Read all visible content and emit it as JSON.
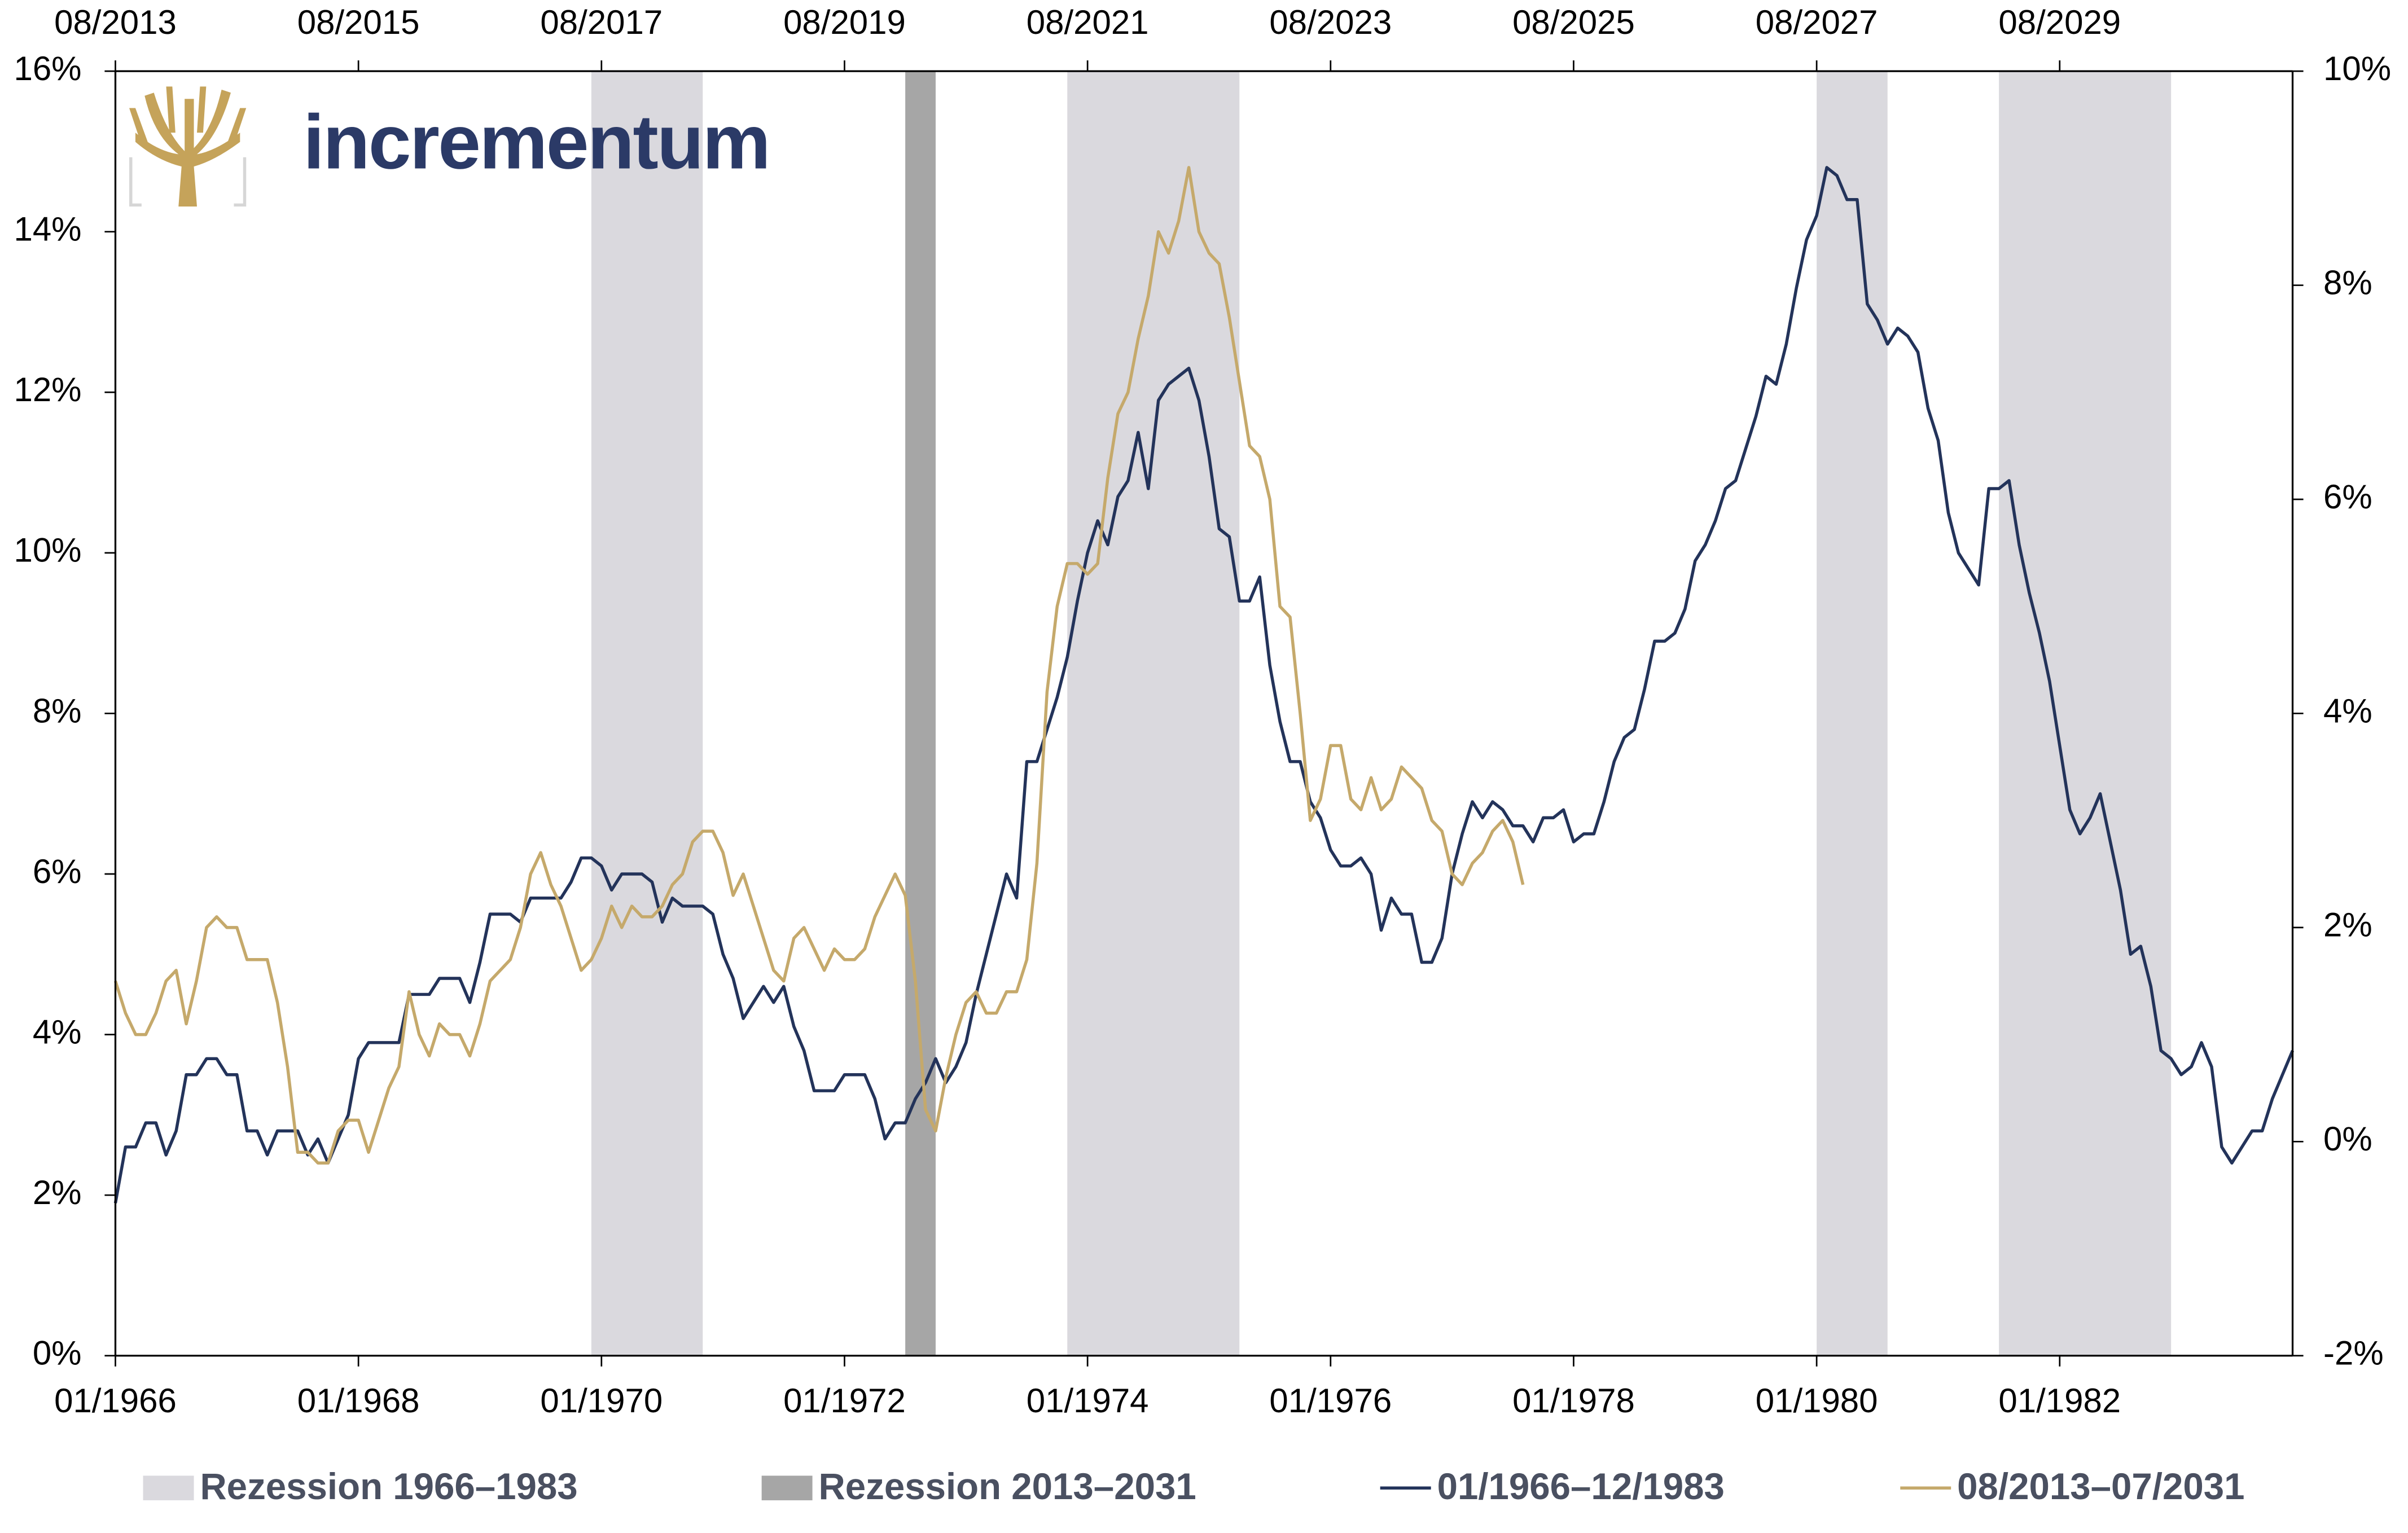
{
  "chart_data": {
    "type": "line",
    "logo_text": "incrementum",
    "xlim": [
      "01/1966",
      "12/1983"
    ],
    "xticks": [
      "01/1966",
      "01/1968",
      "01/1970",
      "01/1972",
      "01/1974",
      "01/1976",
      "01/1978",
      "01/1980",
      "01/1982"
    ],
    "x2lim": [
      "08/2013",
      "07/2031"
    ],
    "x2ticks": [
      "08/2013",
      "08/2015",
      "08/2017",
      "08/2019",
      "08/2021",
      "08/2023",
      "08/2025",
      "08/2027",
      "08/2029"
    ],
    "ylim": [
      0,
      16
    ],
    "yticks": [
      {
        "value": 0,
        "label": "0%"
      },
      {
        "value": 2,
        "label": "2%"
      },
      {
        "value": 4,
        "label": "4%"
      },
      {
        "value": 6,
        "label": "6%"
      },
      {
        "value": 8,
        "label": "8%"
      },
      {
        "value": 10,
        "label": "10%"
      },
      {
        "value": 12,
        "label": "12%"
      },
      {
        "value": 14,
        "label": "14%"
      },
      {
        "value": 16,
        "label": "16%"
      }
    ],
    "y2lim": [
      -2,
      10
    ],
    "y2ticks": [
      {
        "value": -2,
        "label": "-2%"
      },
      {
        "value": 0,
        "label": "0%"
      },
      {
        "value": 2,
        "label": "2%"
      },
      {
        "value": 4,
        "label": "4%"
      },
      {
        "value": 6,
        "label": "6%"
      },
      {
        "value": 8,
        "label": "8%"
      },
      {
        "value": 10,
        "label": "10%"
      }
    ],
    "grid": false,
    "recessions": [
      {
        "name": "Rezession 1966–1983",
        "color": "#dad9de",
        "axis": "x",
        "periods": [
          [
            "12/1969",
            "11/1970"
          ],
          [
            "11/1973",
            "04/1975"
          ],
          [
            "01/1980",
            "08/1980"
          ],
          [
            "07/1981",
            "12/1982"
          ]
        ]
      },
      {
        "name": "Rezession 2013–2031",
        "color": "#a6a6a6",
        "axis": "x2",
        "periods": [
          [
            "02/2020",
            "05/2020"
          ]
        ]
      }
    ],
    "series": [
      {
        "name": "01/1966–12/1983",
        "color": "#23335a",
        "x_axis": "x",
        "x": [
          "01/1966",
          "02/1966",
          "03/1966",
          "04/1966",
          "05/1966",
          "06/1966",
          "07/1966",
          "08/1966",
          "09/1966",
          "10/1966",
          "11/1966",
          "12/1966",
          "01/1967",
          "02/1967",
          "03/1967",
          "04/1967",
          "05/1967",
          "06/1967",
          "07/1967",
          "08/1967",
          "09/1967",
          "10/1967",
          "11/1967",
          "12/1967",
          "01/1968",
          "02/1968",
          "03/1968",
          "04/1968",
          "05/1968",
          "06/1968",
          "07/1968",
          "08/1968",
          "09/1968",
          "10/1968",
          "11/1968",
          "12/1968",
          "01/1969",
          "02/1969",
          "03/1969",
          "04/1969",
          "05/1969",
          "06/1969",
          "07/1969",
          "08/1969",
          "09/1969",
          "10/1969",
          "11/1969",
          "12/1969",
          "01/1970",
          "02/1970",
          "03/1970",
          "04/1970",
          "05/1970",
          "06/1970",
          "07/1970",
          "08/1970",
          "09/1970",
          "10/1970",
          "11/1970",
          "12/1970",
          "01/1971",
          "02/1971",
          "03/1971",
          "04/1971",
          "05/1971",
          "06/1971",
          "07/1971",
          "08/1971",
          "09/1971",
          "10/1971",
          "11/1971",
          "12/1971",
          "01/1972",
          "02/1972",
          "03/1972",
          "04/1972",
          "05/1972",
          "06/1972",
          "07/1972",
          "08/1972",
          "09/1972",
          "10/1972",
          "11/1972",
          "12/1972",
          "01/1973",
          "02/1973",
          "03/1973",
          "04/1973",
          "05/1973",
          "06/1973",
          "07/1973",
          "08/1973",
          "09/1973",
          "10/1973",
          "11/1973",
          "12/1973",
          "01/1974",
          "02/1974",
          "03/1974",
          "04/1974",
          "05/1974",
          "06/1974",
          "07/1974",
          "08/1974",
          "09/1974",
          "10/1974",
          "11/1974",
          "12/1974",
          "01/1975",
          "02/1975",
          "03/1975",
          "04/1975",
          "05/1975",
          "06/1975",
          "07/1975",
          "08/1975",
          "09/1975",
          "10/1975",
          "11/1975",
          "12/1975",
          "01/1976",
          "02/1976",
          "03/1976",
          "04/1976",
          "05/1976",
          "06/1976",
          "07/1976",
          "08/1976",
          "09/1976",
          "10/1976",
          "11/1976",
          "12/1976",
          "01/1977",
          "02/1977",
          "03/1977",
          "04/1977",
          "05/1977",
          "06/1977",
          "07/1977",
          "08/1977",
          "09/1977",
          "10/1977",
          "11/1977",
          "12/1977",
          "01/1978",
          "02/1978",
          "03/1978",
          "04/1978",
          "05/1978",
          "06/1978",
          "07/1978",
          "08/1978",
          "09/1978",
          "10/1978",
          "11/1978",
          "12/1978",
          "01/1979",
          "02/1979",
          "03/1979",
          "04/1979",
          "05/1979",
          "06/1979",
          "07/1979",
          "08/1979",
          "09/1979",
          "10/1979",
          "11/1979",
          "12/1979",
          "01/1980",
          "02/1980",
          "03/1980",
          "04/1980",
          "05/1980",
          "06/1980",
          "07/1980",
          "08/1980",
          "09/1980",
          "10/1980",
          "11/1980",
          "12/1980",
          "01/1981",
          "02/1981",
          "03/1981",
          "04/1981",
          "05/1981",
          "06/1981",
          "07/1981",
          "08/1981",
          "09/1981",
          "10/1981",
          "11/1981",
          "12/1981",
          "01/1982",
          "02/1982",
          "03/1982",
          "04/1982",
          "05/1982",
          "06/1982",
          "07/1982",
          "08/1982",
          "09/1982",
          "10/1982",
          "11/1982",
          "12/1982",
          "01/1983",
          "02/1983",
          "03/1983",
          "04/1983",
          "05/1983",
          "06/1983",
          "07/1983",
          "08/1983",
          "09/1983",
          "10/1983",
          "11/1983",
          "12/1983"
        ],
        "values": [
          1.9,
          2.6,
          2.6,
          2.9,
          2.9,
          2.5,
          2.8,
          3.5,
          3.5,
          3.7,
          3.7,
          3.5,
          3.5,
          2.8,
          2.8,
          2.5,
          2.8,
          2.8,
          2.8,
          2.5,
          2.7,
          2.4,
          2.7,
          3.0,
          3.7,
          3.9,
          3.9,
          3.9,
          3.9,
          4.5,
          4.5,
          4.5,
          4.7,
          4.7,
          4.7,
          4.4,
          4.9,
          5.5,
          5.5,
          5.5,
          5.4,
          5.7,
          5.7,
          5.7,
          5.7,
          5.9,
          6.2,
          6.2,
          6.1,
          5.8,
          6.0,
          6.0,
          6.0,
          5.9,
          5.4,
          5.7,
          5.6,
          5.6,
          5.6,
          5.5,
          5.0,
          4.7,
          4.2,
          4.4,
          4.6,
          4.4,
          4.6,
          4.1,
          3.8,
          3.3,
          3.3,
          3.3,
          3.5,
          3.5,
          3.5,
          3.2,
          2.7,
          2.9,
          2.9,
          3.2,
          3.4,
          3.7,
          3.4,
          3.6,
          3.9,
          4.5,
          5.0,
          5.5,
          6.0,
          5.7,
          7.4,
          7.4,
          7.8,
          8.2,
          8.7,
          9.4,
          10.0,
          10.4,
          10.1,
          10.7,
          10.9,
          11.5,
          10.8,
          11.9,
          12.1,
          12.2,
          12.3,
          11.9,
          11.2,
          10.3,
          10.2,
          9.4,
          9.4,
          9.7,
          8.6,
          7.9,
          7.4,
          7.4,
          6.9,
          6.7,
          6.3,
          6.1,
          6.1,
          6.2,
          6.0,
          5.3,
          5.7,
          5.5,
          5.5,
          4.9,
          4.9,
          5.2,
          6.0,
          6.5,
          6.9,
          6.7,
          6.9,
          6.8,
          6.6,
          6.6,
          6.4,
          6.7,
          6.7,
          6.8,
          6.4,
          6.5,
          6.5,
          6.9,
          7.4,
          7.7,
          7.8,
          8.3,
          8.9,
          8.9,
          9.0,
          9.3,
          9.9,
          10.1,
          10.4,
          10.8,
          10.9,
          11.3,
          11.7,
          12.2,
          12.1,
          12.6,
          13.3,
          13.9,
          14.2,
          14.8,
          14.7,
          14.4,
          14.4,
          13.1,
          12.9,
          12.6,
          12.8,
          12.7,
          12.5,
          11.8,
          11.4,
          10.5,
          10.0,
          9.8,
          9.6,
          10.8,
          10.8,
          10.9,
          10.1,
          9.5,
          9.0,
          8.4,
          7.6,
          6.8,
          6.5,
          6.7,
          7.0,
          6.4,
          5.8,
          5.0,
          5.1,
          4.6,
          3.8,
          3.7,
          3.5,
          3.6,
          3.9,
          3.6,
          2.6,
          2.4,
          2.6,
          2.8,
          2.8,
          3.2,
          3.5,
          3.8
        ]
      },
      {
        "name": "08/2013–07/2031",
        "color": "#c5a96b",
        "axis": "y2",
        "x_axis": "x2",
        "x": [
          "08/2013",
          "09/2013",
          "10/2013",
          "11/2013",
          "12/2013",
          "01/2014",
          "02/2014",
          "03/2014",
          "04/2014",
          "05/2014",
          "06/2014",
          "07/2014",
          "08/2014",
          "09/2014",
          "10/2014",
          "11/2014",
          "12/2014",
          "01/2015",
          "02/2015",
          "03/2015",
          "04/2015",
          "05/2015",
          "06/2015",
          "07/2015",
          "08/2015",
          "09/2015",
          "10/2015",
          "11/2015",
          "12/2015",
          "01/2016",
          "02/2016",
          "03/2016",
          "04/2016",
          "05/2016",
          "06/2016",
          "07/2016",
          "08/2016",
          "09/2016",
          "10/2016",
          "11/2016",
          "12/2016",
          "01/2017",
          "02/2017",
          "03/2017",
          "04/2017",
          "05/2017",
          "06/2017",
          "07/2017",
          "08/2017",
          "09/2017",
          "10/2017",
          "11/2017",
          "12/2017",
          "01/2018",
          "02/2018",
          "03/2018",
          "04/2018",
          "05/2018",
          "06/2018",
          "07/2018",
          "08/2018",
          "09/2018",
          "10/2018",
          "11/2018",
          "12/2018",
          "01/2019",
          "02/2019",
          "03/2019",
          "04/2019",
          "05/2019",
          "06/2019",
          "07/2019",
          "08/2019",
          "09/2019",
          "10/2019",
          "11/2019",
          "12/2019",
          "01/2020",
          "02/2020",
          "03/2020",
          "04/2020",
          "05/2020",
          "06/2020",
          "07/2020",
          "08/2020",
          "09/2020",
          "10/2020",
          "11/2020",
          "12/2020",
          "01/2021",
          "02/2021",
          "03/2021",
          "04/2021",
          "05/2021",
          "06/2021",
          "07/2021",
          "08/2021",
          "09/2021",
          "10/2021",
          "11/2021",
          "12/2021",
          "01/2022",
          "02/2022",
          "03/2022",
          "04/2022",
          "05/2022",
          "06/2022",
          "07/2022",
          "08/2022",
          "09/2022",
          "10/2022",
          "11/2022",
          "12/2022",
          "01/2023",
          "02/2023",
          "03/2023",
          "04/2023",
          "05/2023",
          "06/2023",
          "07/2023",
          "08/2023",
          "09/2023",
          "10/2023",
          "11/2023",
          "12/2023",
          "01/2024",
          "02/2024",
          "03/2024",
          "04/2024",
          "05/2024",
          "06/2024",
          "07/2024",
          "08/2024",
          "09/2024",
          "10/2024",
          "11/2024",
          "12/2024",
          "01/2025",
          "02/2025",
          "03/2025"
        ],
        "values": [
          1.5,
          1.2,
          1.0,
          1.0,
          1.2,
          1.5,
          1.6,
          1.1,
          1.5,
          2.0,
          2.1,
          2.0,
          2.0,
          1.7,
          1.7,
          1.7,
          1.3,
          0.7,
          -0.1,
          -0.1,
          -0.2,
          -0.2,
          0.1,
          0.2,
          0.2,
          -0.1,
          0.2,
          0.5,
          0.7,
          1.4,
          1.0,
          0.8,
          1.1,
          1.0,
          1.0,
          0.8,
          1.1,
          1.5,
          1.6,
          1.7,
          2.0,
          2.5,
          2.7,
          2.4,
          2.2,
          1.9,
          1.6,
          1.7,
          1.9,
          2.2,
          2.0,
          2.2,
          2.1,
          2.1,
          2.2,
          2.4,
          2.5,
          2.8,
          2.9,
          2.9,
          2.7,
          2.3,
          2.5,
          2.2,
          1.9,
          1.6,
          1.5,
          1.9,
          2.0,
          1.8,
          1.6,
          1.8,
          1.7,
          1.7,
          1.8,
          2.1,
          2.3,
          2.5,
          2.3,
          1.5,
          0.3,
          0.1,
          0.6,
          1.0,
          1.3,
          1.4,
          1.2,
          1.2,
          1.4,
          1.4,
          1.7,
          2.6,
          4.2,
          5.0,
          5.4,
          5.4,
          5.3,
          5.4,
          6.2,
          6.8,
          7.0,
          7.5,
          7.9,
          8.5,
          8.3,
          8.6,
          9.1,
          8.5,
          8.3,
          8.2,
          7.7,
          7.1,
          6.5,
          6.4,
          6.0,
          5.0,
          4.9,
          4.0,
          3.0,
          3.2,
          3.7,
          3.7,
          3.2,
          3.1,
          3.4,
          3.1,
          3.2,
          3.5,
          3.4,
          3.3,
          3.0,
          2.9,
          2.5,
          2.4,
          2.6,
          2.7,
          2.9,
          3.0,
          2.8,
          2.4
        ]
      }
    ]
  }
}
